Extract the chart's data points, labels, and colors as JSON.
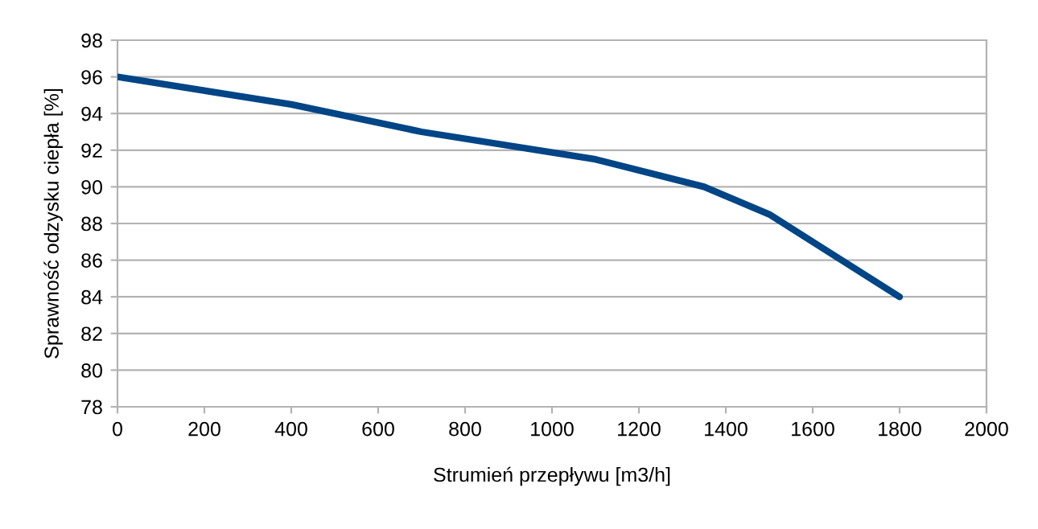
{
  "chart_data": {
    "type": "line",
    "xlabel": "Strumień przepływu [m3/h]",
    "ylabel": "Sprawność odzysku ciepła [%]",
    "x": [
      0,
      400,
      700,
      1100,
      1350,
      1500,
      1800
    ],
    "series": [
      {
        "color": "#004586",
        "values": [
          96,
          94.5,
          93,
          91.5,
          90,
          88.5,
          84
        ]
      }
    ],
    "xlim": [
      0,
      2000
    ],
    "xticks": [
      0,
      200,
      400,
      600,
      800,
      1000,
      1200,
      1400,
      1600,
      1800,
      2000
    ],
    "ylim": [
      78,
      98
    ],
    "yticks": [
      78,
      80,
      82,
      84,
      86,
      88,
      90,
      92,
      94,
      96,
      98
    ],
    "grid": "y",
    "marker": "none",
    "line_style": "solid"
  }
}
